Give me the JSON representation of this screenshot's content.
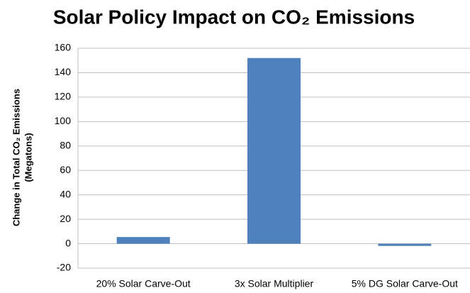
{
  "chart_data": {
    "type": "bar",
    "title": "Solar Policy Impact on CO₂ Emissions",
    "ylabel": [
      "Change in Total CO₂ Emissions",
      "(Megatons)"
    ],
    "categories": [
      "20% Solar Carve-Out",
      "3x Solar Multiplier",
      "5% DG Solar Carve-Out"
    ],
    "values": [
      5.5,
      152,
      -1.8
    ],
    "color": "#4f81bd",
    "ylim": [
      -20,
      160
    ],
    "yticks": [
      -20,
      0,
      20,
      40,
      60,
      80,
      100,
      120,
      140,
      160
    ],
    "grid": true
  }
}
